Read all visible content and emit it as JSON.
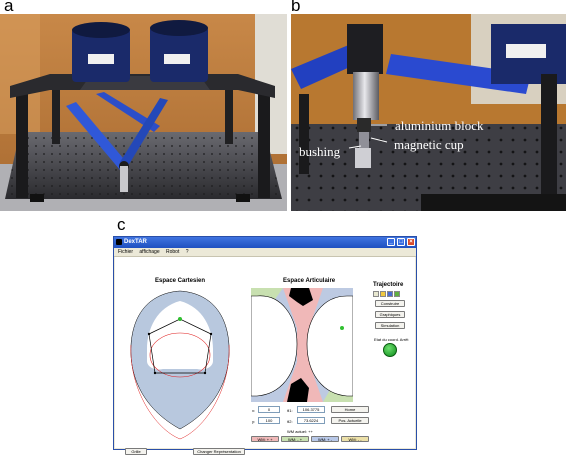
{
  "panels": {
    "a": "a",
    "b": "b",
    "c": "c"
  },
  "photo_b": {
    "callout_block": "aluminium block",
    "callout_bushing": "bushing",
    "callout_cup": "magnetic cup"
  },
  "window": {
    "title": "DexTAR",
    "menu": [
      "Fichier",
      "affichage",
      "Robot",
      "?"
    ],
    "left_panel": {
      "title": "Espace Cartesien",
      "grid_button": "Grille",
      "change_repr_button": "Changer Représentation"
    },
    "right_panel": {
      "title": "Espace Articulaire",
      "x_label": "x:",
      "x_value": "0",
      "y_label": "y:",
      "y_value": "100",
      "theta1_label": "θ1:",
      "theta1_value": "106.3775",
      "theta2_label": "θ2:",
      "theta2_value": "73.6224",
      "home_button": "Home",
      "pos_actuelle_button": "Pos. Actuelle",
      "mode_label": "WM actuel: ++",
      "modes": [
        {
          "label": "WM: + +",
          "color": "#f0b8b8"
        },
        {
          "label": "WM: - +",
          "color": "#c8e0b0"
        },
        {
          "label": "WM: + -",
          "color": "#b8c8e8"
        },
        {
          "label": "WM: - -",
          "color": "#ece0a8"
        }
      ]
    },
    "trajectory": {
      "title": "Trajectoire",
      "construire_button": "Construire",
      "graphiques_button": "Graphiques",
      "simulation_button": "Simulation",
      "status_label": "Etat du coord. Arrêt"
    }
  }
}
